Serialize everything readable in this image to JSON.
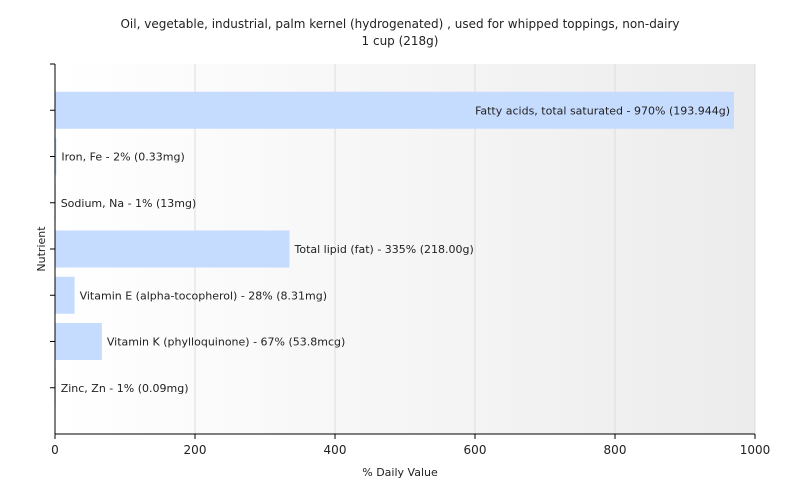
{
  "chart_data": {
    "type": "bar",
    "orientation": "horizontal",
    "title": "Oil, vegetable, industrial, palm kernel (hydrogenated) , used for whipped toppings, non-dairy",
    "subtitle": "1 cup (218g)",
    "xlabel": "% Daily Value",
    "ylabel": "Nutrient",
    "xlim": [
      0,
      1000
    ],
    "xticks": [
      0,
      200,
      400,
      600,
      800,
      1000
    ],
    "grid": true,
    "legend": "none",
    "bar_color": "#c6dcff",
    "bars": [
      {
        "name": "Fatty acids, total saturated",
        "value": 970,
        "label": "Fatty acids, total saturated - 970% (193.944g)"
      },
      {
        "name": "Iron, Fe",
        "value": 2,
        "label": "Iron, Fe - 2% (0.33mg)"
      },
      {
        "name": "Sodium, Na",
        "value": 1,
        "label": "Sodium, Na - 1% (13mg)"
      },
      {
        "name": "Total lipid (fat)",
        "value": 335,
        "label": "Total lipid (fat) - 335% (218.00g)"
      },
      {
        "name": "Vitamin E (alpha-tocopherol)",
        "value": 28,
        "label": "Vitamin E (alpha-tocopherol) - 28% (8.31mg)"
      },
      {
        "name": "Vitamin K (phylloquinone)",
        "value": 67,
        "label": "Vitamin K (phylloquinone) - 67% (53.8mcg)"
      },
      {
        "name": "Zinc, Zn",
        "value": 1,
        "label": "Zinc, Zn - 1% (0.09mg)"
      }
    ]
  }
}
